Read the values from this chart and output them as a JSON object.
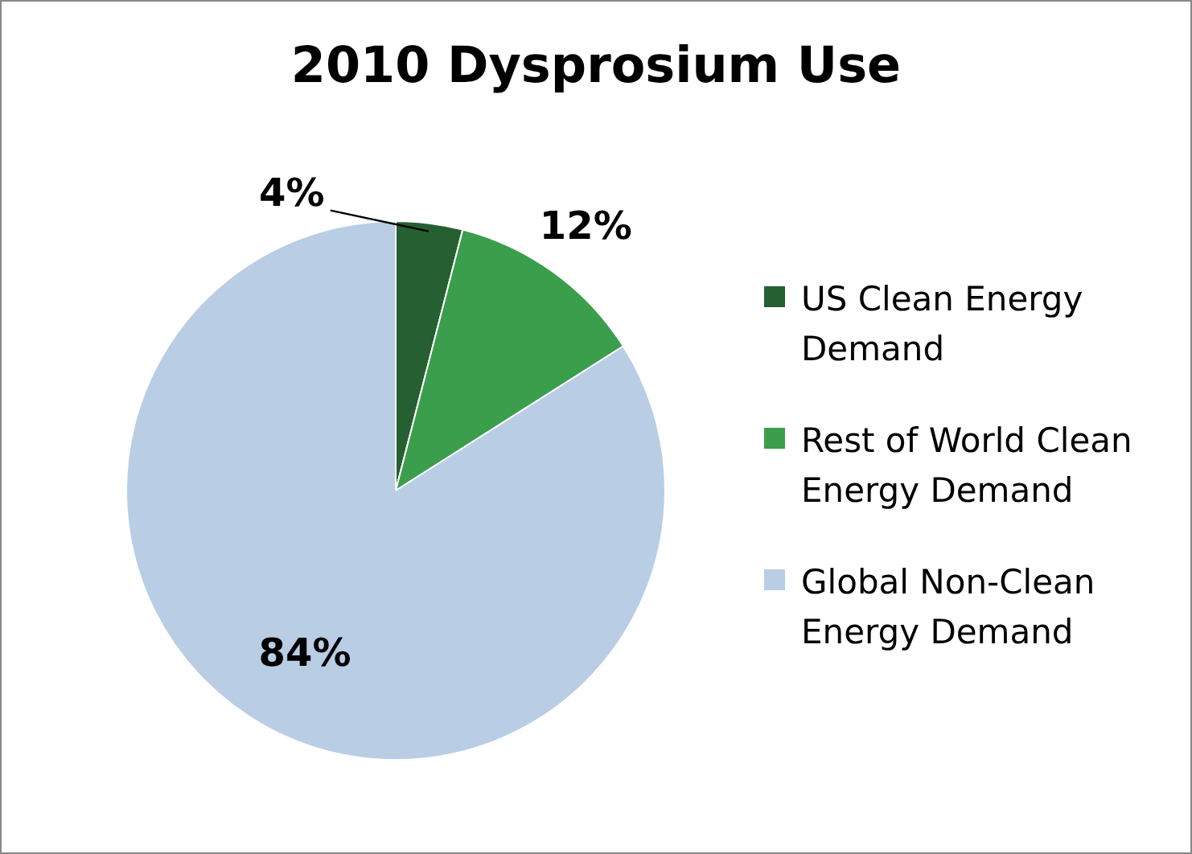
{
  "chart_data": {
    "type": "pie",
    "title": "2010 Dysprosium Use",
    "categories": [
      "US Clean Energy Demand",
      "Rest of World Clean Energy Demand",
      "Global Non-Clean Energy Demand"
    ],
    "values": [
      4,
      12,
      84
    ],
    "colors": [
      "#265f32",
      "#3a9e4c",
      "#b9cde5"
    ],
    "value_labels": [
      "4%",
      "12%",
      "84%"
    ],
    "legend": "right"
  }
}
